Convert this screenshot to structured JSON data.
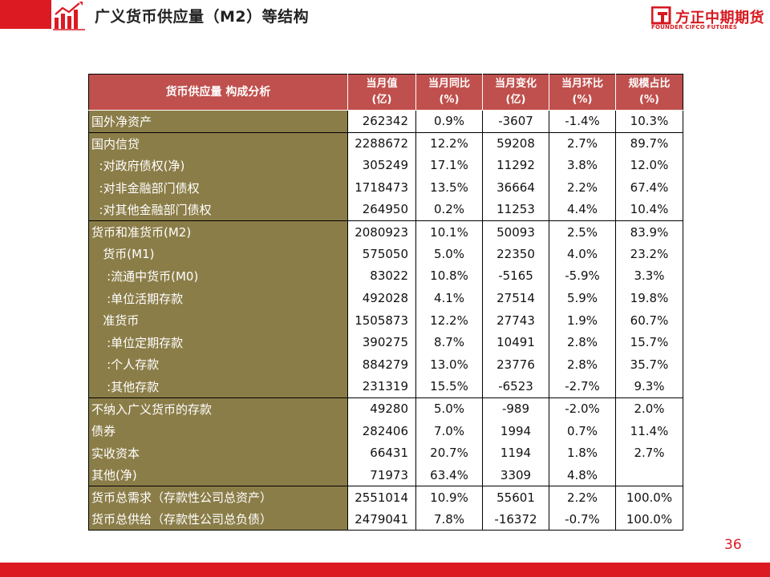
{
  "header": {
    "title": "广义货币供应量（M2）等结构",
    "logo_cn": "方正中期期货",
    "logo_en": "FOUNDER CIFCO FUTURES",
    "accent_color": "#dc1a22"
  },
  "table": {
    "corner_label": "货币供应量 构成分析",
    "columns": [
      {
        "line1": "当月值",
        "line2": "(亿)"
      },
      {
        "line1": "当月同比",
        "line2": "(%)"
      },
      {
        "line1": "当月变化",
        "line2": "(亿)"
      },
      {
        "line1": "当月环比",
        "line2": "(%)"
      },
      {
        "line1": "规模占比",
        "line2": "(%)"
      }
    ],
    "rows": [
      {
        "label": "国外净资产",
        "values": [
          "262342",
          "0.9%",
          "-3607",
          "-1.4%",
          "10.3%"
        ]
      },
      {
        "label": "国内信贷",
        "values": [
          "2288672",
          "12.2%",
          "59208",
          "2.7%",
          "89.7%"
        ]
      },
      {
        "label": "  :对政府债权(净)",
        "values": [
          "305249",
          "17.1%",
          "11292",
          "3.8%",
          "12.0%"
        ]
      },
      {
        "label": "  :对非金融部门债权",
        "values": [
          "1718473",
          "13.5%",
          "36664",
          "2.2%",
          "67.4%"
        ]
      },
      {
        "label": "  :对其他金融部门债权",
        "values": [
          "264950",
          "0.2%",
          "11253",
          "4.4%",
          "10.4%"
        ]
      },
      {
        "label": "货币和准货币(M2)",
        "values": [
          "2080923",
          "10.1%",
          "50093",
          "2.5%",
          "83.9%"
        ]
      },
      {
        "label": "   货币(M1)",
        "values": [
          "575050",
          "5.0%",
          "22350",
          "4.0%",
          "23.2%"
        ]
      },
      {
        "label": "    :流通中货币(M0)",
        "values": [
          "83022",
          "10.8%",
          "-5165",
          "-5.9%",
          "3.3%"
        ]
      },
      {
        "label": "    :单位活期存款",
        "values": [
          "492028",
          "4.1%",
          "27514",
          "5.9%",
          "19.8%"
        ]
      },
      {
        "label": "   准货币",
        "values": [
          "1505873",
          "12.2%",
          "27743",
          "1.9%",
          "60.7%"
        ]
      },
      {
        "label": "    :单位定期存款",
        "values": [
          "390275",
          "8.7%",
          "10491",
          "2.8%",
          "15.7%"
        ]
      },
      {
        "label": "    :个人存款",
        "values": [
          "884279",
          "13.0%",
          "23776",
          "2.8%",
          "35.7%"
        ]
      },
      {
        "label": "    :其他存款",
        "values": [
          "231319",
          "15.5%",
          "-6523",
          "-2.7%",
          "9.3%"
        ]
      },
      {
        "label": "不纳入广义货币的存款",
        "values": [
          "49280",
          "5.0%",
          "-989",
          "-2.0%",
          "2.0%"
        ]
      },
      {
        "label": "债券",
        "values": [
          "282406",
          "7.0%",
          "1994",
          "0.7%",
          "11.4%"
        ]
      },
      {
        "label": "实收资本",
        "values": [
          "66431",
          "20.7%",
          "1194",
          "1.8%",
          "2.7%"
        ]
      },
      {
        "label": "其他(净)",
        "values": [
          "71973",
          "63.4%",
          "3309",
          "4.8%",
          ""
        ]
      },
      {
        "label": "货币总需求（存款性公司总资产）",
        "values": [
          "2551014",
          "10.9%",
          "55601",
          "2.2%",
          "100.0%"
        ]
      },
      {
        "label": "货币总供给（存款性公司总负债）",
        "values": [
          "2479041",
          "7.8%",
          "-16372",
          "-0.7%",
          "100.0%"
        ]
      }
    ],
    "header_color": "#c0504d",
    "label_color": "#8b7d48"
  },
  "footer": {
    "page_number": "36"
  }
}
